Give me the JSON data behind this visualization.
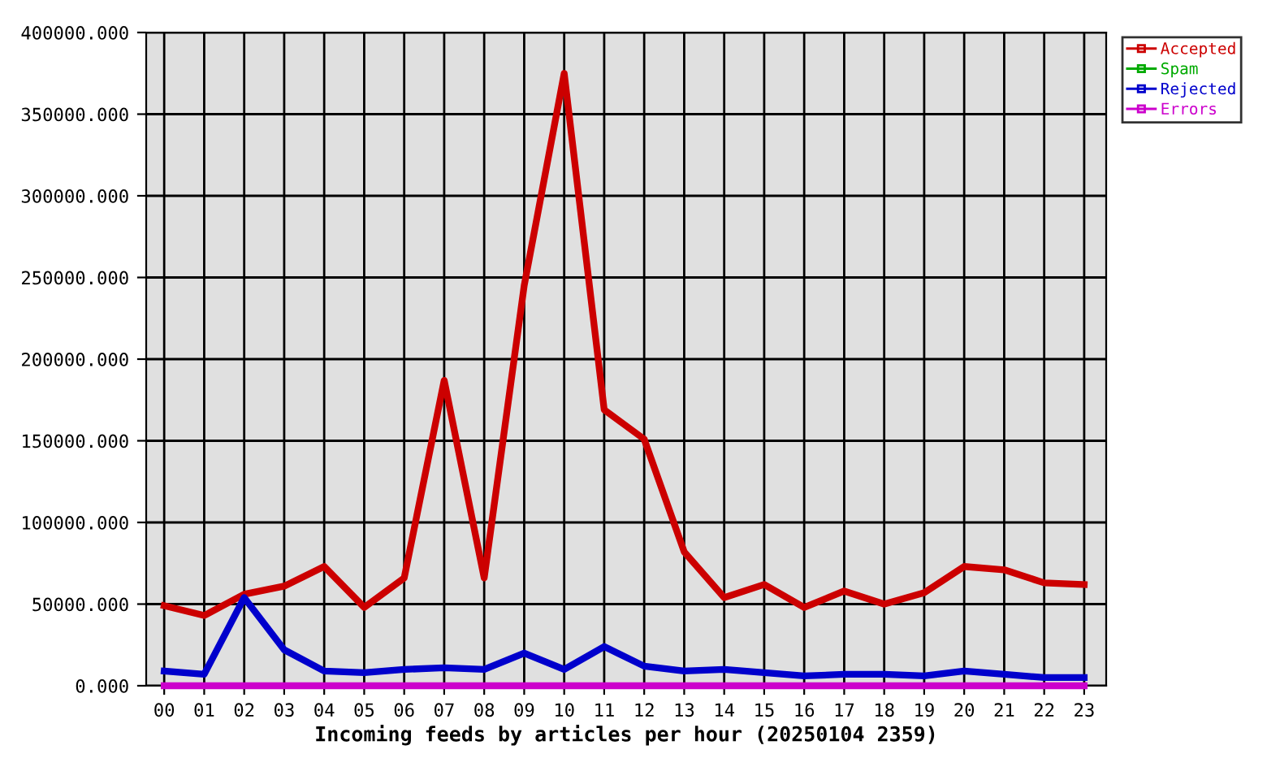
{
  "chart_data": {
    "type": "line",
    "xlabel": "Incoming feeds by articles per hour (20250104 2359)",
    "categories": [
      "00",
      "01",
      "02",
      "03",
      "04",
      "05",
      "06",
      "07",
      "08",
      "09",
      "10",
      "11",
      "12",
      "13",
      "14",
      "15",
      "16",
      "17",
      "18",
      "19",
      "20",
      "21",
      "22",
      "23"
    ],
    "series": [
      {
        "name": "Accepted",
        "color": "#cc0000",
        "values": [
          49000,
          43000,
          56000,
          61000,
          73000,
          48000,
          66000,
          187000,
          66000,
          245000,
          375000,
          169000,
          151000,
          82000,
          54000,
          62000,
          48000,
          58000,
          50000,
          57000,
          73000,
          71000,
          63000,
          62000
        ]
      },
      {
        "name": "Spam",
        "color": "#00aa00",
        "values": [
          null,
          null,
          null,
          null,
          null,
          null,
          null,
          null,
          null,
          null,
          null,
          null,
          null,
          null,
          null,
          null,
          null,
          null,
          null,
          null,
          null,
          null,
          null,
          null
        ]
      },
      {
        "name": "Rejected",
        "color": "#0000cc",
        "values": [
          9000,
          7000,
          54000,
          22000,
          9000,
          8000,
          10000,
          11000,
          10000,
          20000,
          10000,
          24000,
          12000,
          9000,
          10000,
          8000,
          6000,
          7000,
          7000,
          6000,
          9000,
          7000,
          5000,
          5000
        ]
      },
      {
        "name": "Errors",
        "color": "#cc00cc",
        "values": [
          0,
          0,
          0,
          0,
          0,
          0,
          0,
          0,
          0,
          0,
          0,
          0,
          0,
          0,
          0,
          0,
          0,
          0,
          0,
          0,
          0,
          0,
          0,
          0
        ]
      }
    ],
    "ylim": [
      0,
      400000
    ],
    "yticks": [
      {
        "value": 0,
        "label": "0.000"
      },
      {
        "value": 50000,
        "label": "50000.000"
      },
      {
        "value": 100000,
        "label": "100000.000"
      },
      {
        "value": 150000,
        "label": "150000.000"
      },
      {
        "value": 200000,
        "label": "200000.000"
      },
      {
        "value": 250000,
        "label": "250000.000"
      },
      {
        "value": 300000,
        "label": "300000.000"
      },
      {
        "value": 350000,
        "label": "350000.000"
      },
      {
        "value": 400000,
        "label": "400000.000"
      }
    ],
    "grid": true,
    "legend": "top right",
    "line_style": "solid"
  }
}
